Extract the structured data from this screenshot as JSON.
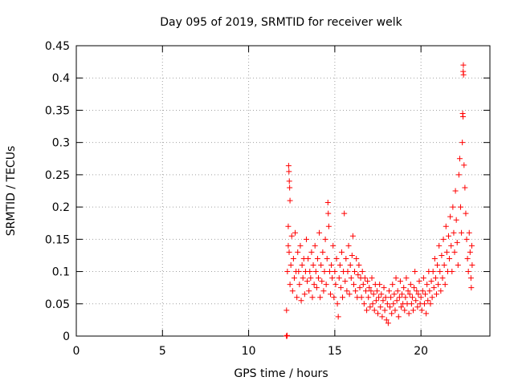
{
  "chart_data": {
    "type": "scatter",
    "title": "Day 095 of 2019, SRMTID for receiver welk",
    "xlabel": "GPS time / hours",
    "ylabel": "SRMTID / TECUs",
    "xlim": [
      0,
      24
    ],
    "ylim": [
      0,
      0.45
    ],
    "xticks": [
      0,
      5,
      10,
      15,
      20
    ],
    "xtick_labels": [
      "0",
      "5",
      "10",
      "15",
      "20"
    ],
    "yticks": [
      0,
      0.05,
      0.1,
      0.15,
      0.2,
      0.25,
      0.3,
      0.35,
      0.4,
      0.45
    ],
    "ytick_labels": [
      "0",
      "0.05",
      "0.1",
      "0.15",
      "0.2",
      "0.25",
      "0.3",
      "0.35",
      "0.4",
      "0.45"
    ],
    "grid": true,
    "marker": "+",
    "color": "#ff0000",
    "series": [
      {
        "name": "SRMTID",
        "points": [
          [
            12.2,
            0.0
          ],
          [
            12.2,
            0.0
          ],
          [
            12.22,
            0.0
          ],
          [
            12.23,
            0.001
          ],
          [
            12.2,
            0.04
          ],
          [
            12.25,
            0.1
          ],
          [
            12.3,
            0.14
          ],
          [
            12.32,
            0.264
          ],
          [
            12.34,
            0.255
          ],
          [
            12.36,
            0.24
          ],
          [
            12.38,
            0.23
          ],
          [
            12.4,
            0.21
          ],
          [
            12.3,
            0.17
          ],
          [
            12.35,
            0.13
          ],
          [
            12.4,
            0.08
          ],
          [
            12.45,
            0.11
          ],
          [
            12.5,
            0.155
          ],
          [
            12.55,
            0.07
          ],
          [
            12.6,
            0.12
          ],
          [
            12.65,
            0.09
          ],
          [
            12.7,
            0.16
          ],
          [
            12.75,
            0.1
          ],
          [
            12.8,
            0.06
          ],
          [
            12.85,
            0.13
          ],
          [
            12.9,
            0.1
          ],
          [
            12.95,
            0.08
          ],
          [
            13.0,
            0.14
          ],
          [
            13.05,
            0.055
          ],
          [
            13.1,
            0.11
          ],
          [
            13.15,
            0.09
          ],
          [
            13.2,
            0.12
          ],
          [
            13.25,
            0.065
          ],
          [
            13.3,
            0.1
          ],
          [
            13.35,
            0.15
          ],
          [
            13.4,
            0.085
          ],
          [
            13.45,
            0.12
          ],
          [
            13.5,
            0.07
          ],
          [
            13.55,
            0.1
          ],
          [
            13.6,
            0.09
          ],
          [
            13.65,
            0.13
          ],
          [
            13.7,
            0.06
          ],
          [
            13.75,
            0.11
          ],
          [
            13.8,
            0.08
          ],
          [
            13.85,
            0.14
          ],
          [
            13.9,
            0.1
          ],
          [
            13.95,
            0.075
          ],
          [
            14.0,
            0.12
          ],
          [
            14.05,
            0.09
          ],
          [
            14.1,
            0.16
          ],
          [
            14.15,
            0.06
          ],
          [
            14.2,
            0.11
          ],
          [
            14.25,
            0.085
          ],
          [
            14.3,
            0.13
          ],
          [
            14.35,
            0.07
          ],
          [
            14.4,
            0.1
          ],
          [
            14.45,
            0.15
          ],
          [
            14.5,
            0.08
          ],
          [
            14.55,
            0.12
          ],
          [
            14.6,
            0.207
          ],
          [
            14.62,
            0.19
          ],
          [
            14.65,
            0.17
          ],
          [
            14.7,
            0.1
          ],
          [
            14.75,
            0.065
          ],
          [
            14.8,
            0.11
          ],
          [
            14.85,
            0.09
          ],
          [
            14.9,
            0.14
          ],
          [
            14.95,
            0.06
          ],
          [
            15.0,
            0.1
          ],
          [
            15.05,
            0.08
          ],
          [
            15.1,
            0.12
          ],
          [
            15.15,
            0.05
          ],
          [
            15.2,
            0.03
          ],
          [
            15.25,
            0.09
          ],
          [
            15.3,
            0.11
          ],
          [
            15.35,
            0.075
          ],
          [
            15.4,
            0.13
          ],
          [
            15.45,
            0.06
          ],
          [
            15.5,
            0.1
          ],
          [
            15.55,
            0.19
          ],
          [
            15.6,
            0.085
          ],
          [
            15.65,
            0.12
          ],
          [
            15.7,
            0.07
          ],
          [
            15.75,
            0.1
          ],
          [
            15.8,
            0.14
          ],
          [
            15.85,
            0.065
          ],
          [
            15.9,
            0.11
          ],
          [
            15.95,
            0.09
          ],
          [
            16.0,
            0.125
          ],
          [
            16.05,
            0.155
          ],
          [
            16.1,
            0.08
          ],
          [
            16.15,
            0.1
          ],
          [
            16.2,
            0.07
          ],
          [
            16.25,
            0.12
          ],
          [
            16.3,
            0.06
          ],
          [
            16.35,
            0.095
          ],
          [
            16.4,
            0.11
          ],
          [
            16.45,
            0.075
          ],
          [
            16.5,
            0.09
          ],
          [
            16.55,
            0.06
          ],
          [
            16.6,
            0.1
          ],
          [
            16.65,
            0.08
          ],
          [
            16.7,
            0.05
          ],
          [
            16.75,
            0.09
          ],
          [
            16.8,
            0.07
          ],
          [
            16.85,
            0.04
          ],
          [
            16.9,
            0.085
          ],
          [
            16.95,
            0.06
          ],
          [
            17.0,
            0.075
          ],
          [
            17.05,
            0.045
          ],
          [
            17.1,
            0.07
          ],
          [
            17.15,
            0.09
          ],
          [
            17.2,
            0.05
          ],
          [
            17.25,
            0.065
          ],
          [
            17.3,
            0.04
          ],
          [
            17.35,
            0.08
          ],
          [
            17.4,
            0.055
          ],
          [
            17.45,
            0.07
          ],
          [
            17.5,
            0.035
          ],
          [
            17.55,
            0.06
          ],
          [
            17.6,
            0.08
          ],
          [
            17.65,
            0.045
          ],
          [
            17.7,
            0.065
          ],
          [
            17.75,
            0.03
          ],
          [
            17.8,
            0.055
          ],
          [
            17.85,
            0.075
          ],
          [
            17.9,
            0.04
          ],
          [
            17.95,
            0.06
          ],
          [
            18.0,
            0.025
          ],
          [
            18.05,
            0.05
          ],
          [
            18.1,
            0.02
          ],
          [
            18.15,
            0.07
          ],
          [
            18.2,
            0.045
          ],
          [
            18.25,
            0.06
          ],
          [
            18.3,
            0.035
          ],
          [
            18.35,
            0.08
          ],
          [
            18.4,
            0.05
          ],
          [
            18.45,
            0.065
          ],
          [
            18.5,
            0.04
          ],
          [
            18.55,
            0.09
          ],
          [
            18.6,
            0.055
          ],
          [
            18.65,
            0.07
          ],
          [
            18.7,
            0.03
          ],
          [
            18.75,
            0.06
          ],
          [
            18.8,
            0.085
          ],
          [
            18.85,
            0.045
          ],
          [
            18.9,
            0.065
          ],
          [
            18.95,
            0.05
          ],
          [
            19.0,
            0.075
          ],
          [
            19.05,
            0.04
          ],
          [
            19.1,
            0.06
          ],
          [
            19.15,
            0.09
          ],
          [
            19.2,
            0.05
          ],
          [
            19.25,
            0.07
          ],
          [
            19.3,
            0.035
          ],
          [
            19.35,
            0.065
          ],
          [
            19.4,
            0.08
          ],
          [
            19.45,
            0.05
          ],
          [
            19.5,
            0.06
          ],
          [
            19.55,
            0.04
          ],
          [
            19.6,
            0.075
          ],
          [
            19.65,
            0.1
          ],
          [
            19.7,
            0.055
          ],
          [
            19.75,
            0.07
          ],
          [
            19.8,
            0.045
          ],
          [
            19.85,
            0.065
          ],
          [
            19.9,
            0.085
          ],
          [
            19.95,
            0.05
          ],
          [
            20.0,
            0.06
          ],
          [
            20.05,
            0.04
          ],
          [
            20.1,
            0.07
          ],
          [
            20.15,
            0.09
          ],
          [
            20.2,
            0.05
          ],
          [
            20.25,
            0.065
          ],
          [
            20.3,
            0.035
          ],
          [
            20.35,
            0.08
          ],
          [
            20.4,
            0.055
          ],
          [
            20.45,
            0.1
          ],
          [
            20.5,
            0.07
          ],
          [
            20.55,
            0.05
          ],
          [
            20.6,
            0.085
          ],
          [
            20.65,
            0.06
          ],
          [
            20.7,
            0.1
          ],
          [
            20.75,
            0.075
          ],
          [
            20.8,
            0.12
          ],
          [
            20.85,
            0.09
          ],
          [
            20.9,
            0.065
          ],
          [
            20.95,
            0.11
          ],
          [
            21.0,
            0.08
          ],
          [
            21.05,
            0.14
          ],
          [
            21.1,
            0.1
          ],
          [
            21.15,
            0.07
          ],
          [
            21.2,
            0.125
          ],
          [
            21.25,
            0.09
          ],
          [
            21.3,
            0.15
          ],
          [
            21.35,
            0.11
          ],
          [
            21.4,
            0.08
          ],
          [
            21.45,
            0.17
          ],
          [
            21.5,
            0.13
          ],
          [
            21.55,
            0.1
          ],
          [
            21.6,
            0.155
          ],
          [
            21.65,
            0.12
          ],
          [
            21.7,
            0.185
          ],
          [
            21.75,
            0.14
          ],
          [
            21.8,
            0.1
          ],
          [
            21.85,
            0.2
          ],
          [
            21.9,
            0.16
          ],
          [
            21.95,
            0.13
          ],
          [
            22.0,
            0.225
          ],
          [
            22.05,
            0.18
          ],
          [
            22.1,
            0.145
          ],
          [
            22.15,
            0.11
          ],
          [
            22.2,
            0.25
          ],
          [
            22.25,
            0.275
          ],
          [
            22.3,
            0.2
          ],
          [
            22.35,
            0.16
          ],
          [
            22.4,
            0.3
          ],
          [
            22.42,
            0.345
          ],
          [
            22.44,
            0.34
          ],
          [
            22.45,
            0.41
          ],
          [
            22.46,
            0.42
          ],
          [
            22.47,
            0.405
          ],
          [
            22.5,
            0.265
          ],
          [
            22.55,
            0.23
          ],
          [
            22.6,
            0.19
          ],
          [
            22.65,
            0.15
          ],
          [
            22.7,
            0.12
          ],
          [
            22.75,
            0.1
          ],
          [
            22.8,
            0.16
          ],
          [
            22.85,
            0.13
          ],
          [
            22.9,
            0.09
          ],
          [
            22.92,
            0.075
          ],
          [
            22.95,
            0.14
          ],
          [
            22.97,
            0.11
          ]
        ]
      }
    ]
  }
}
